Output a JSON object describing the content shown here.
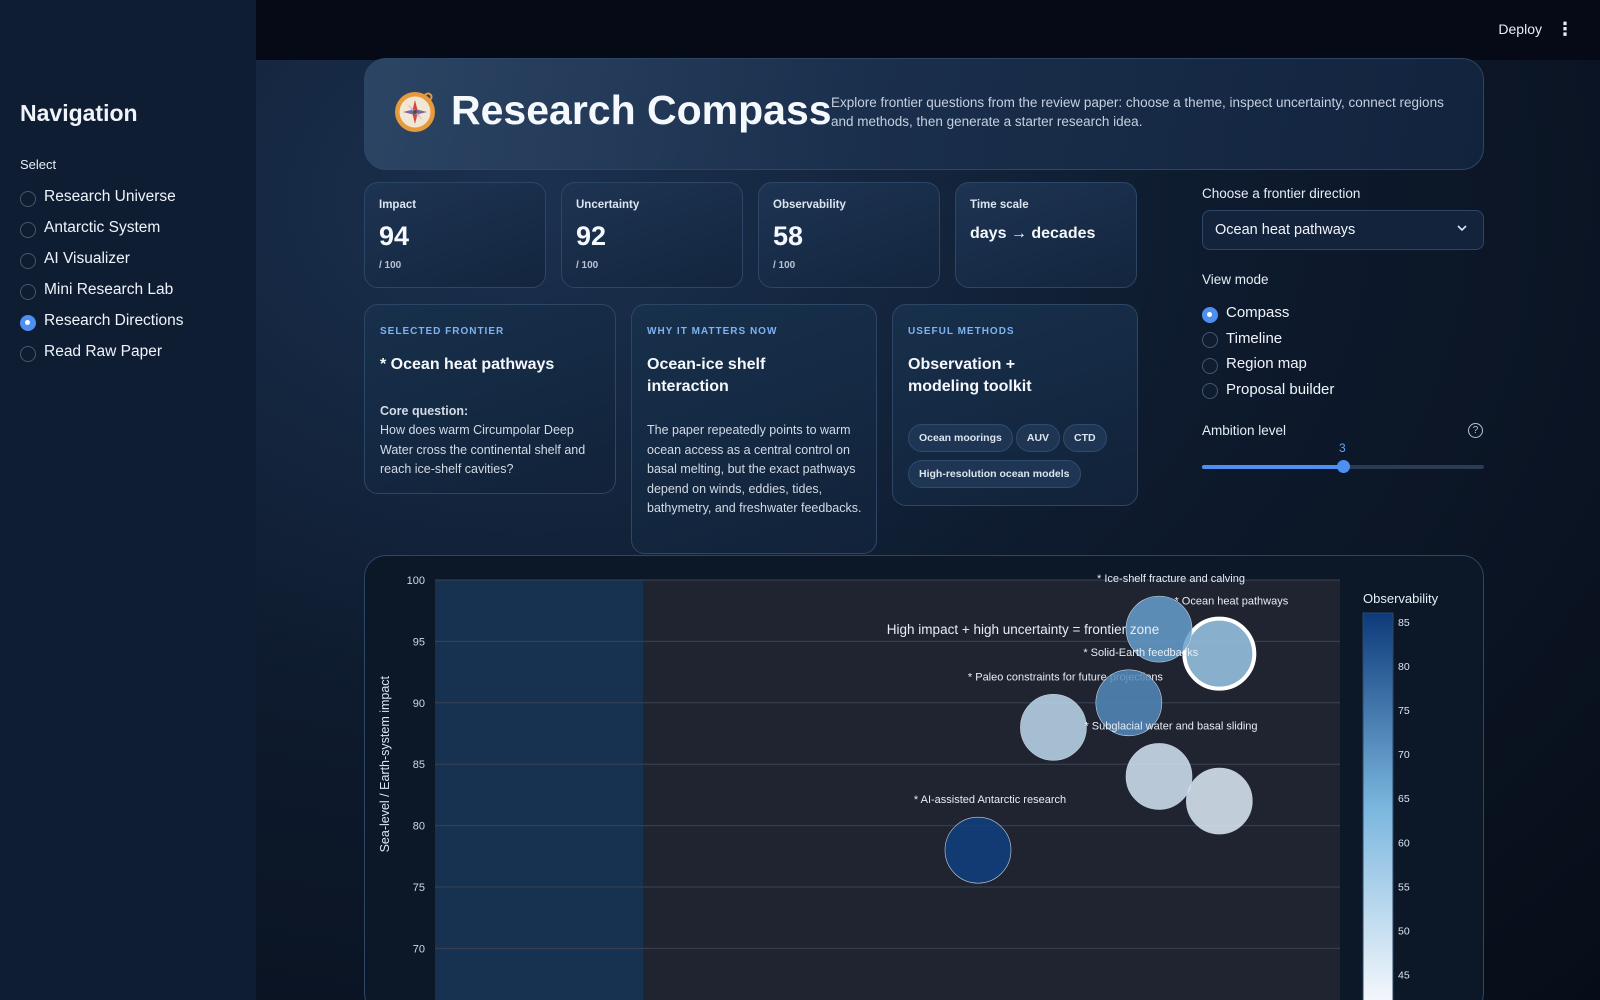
{
  "sidebar": {
    "title": "Navigation",
    "select_label": "Select",
    "items": [
      {
        "label": "Research Universe",
        "selected": false
      },
      {
        "label": "Antarctic System",
        "selected": false
      },
      {
        "label": "AI Visualizer",
        "selected": false
      },
      {
        "label": "Mini Research Lab",
        "selected": false
      },
      {
        "label": "Research Directions",
        "selected": true
      },
      {
        "label": "Read Raw Paper",
        "selected": false
      }
    ]
  },
  "topbar": {
    "deploy_label": "Deploy",
    "menu_icon": "kebab-menu-icon"
  },
  "hero": {
    "icon": "compass-icon",
    "title": "Research Compass",
    "description": "Explore frontier questions from the review paper: choose a theme, inspect uncertainty, connect regions and methods, then generate a starter research idea."
  },
  "metrics": [
    {
      "label": "Impact",
      "value": "94",
      "sub": "/ 100"
    },
    {
      "label": "Uncertainty",
      "value": "92",
      "sub": "/ 100"
    },
    {
      "label": "Observability",
      "value": "58",
      "sub": "/ 100"
    },
    {
      "label": "Time scale",
      "value": "days → decades",
      "sub": ""
    }
  ],
  "cards": {
    "selected": {
      "kicker": "SELECTED FRONTIER",
      "title": "* Ocean heat pathways",
      "question_label": "Core question:",
      "question": "How does warm Circumpolar Deep Water cross the continental shelf and reach ice-shelf cavities?"
    },
    "why": {
      "kicker": "WHY IT MATTERS NOW",
      "title": "Ocean-ice shelf interaction",
      "body": "The paper repeatedly points to warm ocean access as a central control on basal melting, but the exact pathways depend on winds, eddies, tides, bathymetry, and freshwater feedbacks."
    },
    "methods": {
      "kicker": "USEFUL METHODS",
      "title": "Observation + modeling toolkit",
      "chips": [
        "Ocean moorings",
        "AUV",
        "CTD",
        "High-resolution ocean models"
      ]
    }
  },
  "controls": {
    "direction_label": "Choose a frontier direction",
    "direction_value": "Ocean heat pathways",
    "view_label": "View mode",
    "view_options": [
      {
        "label": "Compass",
        "selected": true
      },
      {
        "label": "Timeline",
        "selected": false
      },
      {
        "label": "Region map",
        "selected": false
      },
      {
        "label": "Proposal builder",
        "selected": false
      }
    ],
    "ambition_label": "Ambition level",
    "ambition_value": 3,
    "ambition_min": 1,
    "ambition_max": 5,
    "ambition_value_text": "3"
  },
  "chart_data": {
    "type": "scatter",
    "ylabel": "Sea-level / Earth-system impact",
    "ylim": [
      70,
      100
    ],
    "yticks": [
      70,
      75,
      80,
      85,
      90,
      95,
      100
    ],
    "colorbar_title": "Observability",
    "colorbar_ticks": [
      45,
      50,
      55,
      60,
      65,
      70,
      75,
      80,
      85
    ],
    "colorbar_range": [
      42,
      86
    ],
    "annotation": "High impact + high uncertainty = frontier zone",
    "xlim": [
      40,
      100
    ],
    "points": [
      {
        "label": "* Ocean heat pathways",
        "x": 92,
        "y": 94,
        "obs": 58,
        "selected": true
      },
      {
        "label": "* Ice-shelf fracture and calving",
        "x": 88,
        "y": 96,
        "obs": 68
      },
      {
        "label": "* Paleo constraints for future projections",
        "x": 81,
        "y": 88,
        "obs": 52
      },
      {
        "label": "* Solid-Earth feedbacks",
        "x": 86,
        "y": 90,
        "obs": 72
      },
      {
        "label": "* Subglacial water and basal sliding",
        "x": 88,
        "y": 84,
        "obs": 48
      },
      {
        "label": "",
        "x": 92,
        "y": 82,
        "obs": 46
      },
      {
        "label": "* AI-assisted Antarctic research",
        "x": 76,
        "y": 78,
        "obs": 85
      }
    ]
  }
}
